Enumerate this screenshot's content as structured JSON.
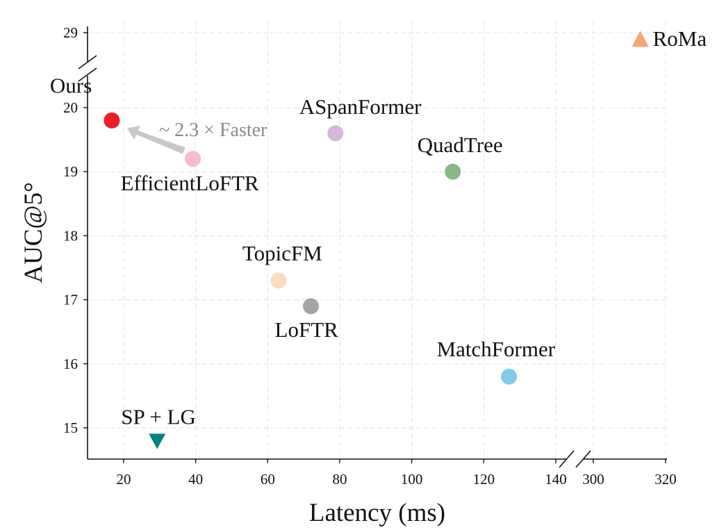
{
  "chart_data": {
    "type": "scatter",
    "xlabel": "Latency (ms)",
    "ylabel": "AUC@5°",
    "x_axis": {
      "broken": true,
      "lower_segment": {
        "range": [
          10,
          142
        ],
        "ticks": [
          20,
          40,
          60,
          80,
          100,
          120,
          140
        ]
      },
      "upper_segment": {
        "range": [
          296,
          320
        ],
        "ticks": [
          300,
          320
        ]
      }
    },
    "y_axis": {
      "broken": true,
      "lower_segment": {
        "range": [
          14.5,
          20.5
        ],
        "ticks": [
          15,
          16,
          17,
          18,
          19,
          20
        ]
      },
      "upper_segment": {
        "ticks": [
          29
        ]
      }
    },
    "grid": true,
    "points": [
      {
        "label": "Ours",
        "x": 16.7,
        "y": 19.8,
        "color": "#ee1c25",
        "marker": "circle"
      },
      {
        "label": "EfficientLoFTR",
        "x": 39.2,
        "y": 19.2,
        "color": "#f7bccb",
        "marker": "circle"
      },
      {
        "label": "ASpanFormer",
        "x": 78.8,
        "y": 19.6,
        "color": "#d4b7d9",
        "marker": "circle"
      },
      {
        "label": "QuadTree",
        "x": 111.4,
        "y": 19.0,
        "color": "#86b986",
        "marker": "circle"
      },
      {
        "label": "TopicFM",
        "x": 63.0,
        "y": 17.3,
        "color": "#fbdcbd",
        "marker": "circle"
      },
      {
        "label": "LoFTR",
        "x": 72.0,
        "y": 16.9,
        "color": "#a5a5a5",
        "marker": "circle"
      },
      {
        "label": "MatchFormer",
        "x": 127.0,
        "y": 15.8,
        "color": "#7fcbe8",
        "marker": "circle"
      },
      {
        "label": "SP + LG",
        "x": 29.3,
        "y": 14.8,
        "color": "#00837f",
        "marker": "triangle-down"
      },
      {
        "label": "RoMa",
        "x": 313.0,
        "y": 28.9,
        "color": "#f6a56e",
        "marker": "triangle-up"
      }
    ],
    "annotations": [
      {
        "text": "~ 2.3 × Faster",
        "from": "EfficientLoFTR",
        "to": "Ours",
        "color": "#c8c8c8"
      }
    ]
  }
}
